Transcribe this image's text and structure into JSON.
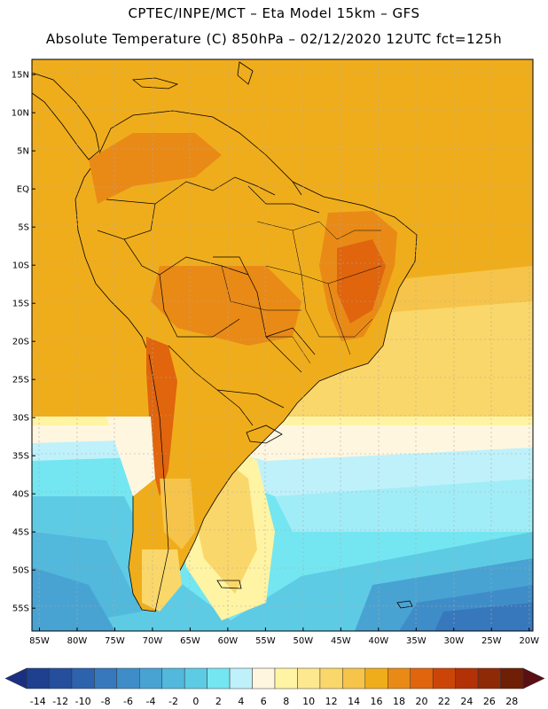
{
  "header": {
    "line1": "CPTEC/INPE/MCT –  Eta Model 15km – GFS",
    "line2": "Absolute Temperature (C) 850hPa – 02/12/2020 12UTC fct=125h"
  },
  "map": {
    "lat_labels": [
      "15N",
      "10N",
      "5N",
      "EQ",
      "5S",
      "10S",
      "15S",
      "20S",
      "25S",
      "30S",
      "35S",
      "40S",
      "45S",
      "50S",
      "55S"
    ],
    "lon_labels": [
      "85W",
      "80W",
      "75W",
      "70W",
      "65W",
      "60W",
      "55W",
      "50W",
      "45W",
      "40W",
      "35W",
      "30W",
      "25W",
      "20W"
    ],
    "lat_values": [
      15,
      10,
      5,
      0,
      -5,
      -10,
      -15,
      -20,
      -25,
      -30,
      -35,
      -40,
      -45,
      -50,
      -55
    ],
    "lon_values": [
      -85,
      -80,
      -75,
      -70,
      -65,
      -60,
      -55,
      -50,
      -45,
      -40,
      -35,
      -30,
      -25,
      -20
    ],
    "extent": {
      "west": -86,
      "east": -19.5,
      "south": -58,
      "north": 17
    }
  },
  "colorbar": {
    "labels": [
      "-14",
      "-12",
      "-10",
      "-8",
      "-6",
      "-4",
      "-2",
      "0",
      "2",
      "4",
      "6",
      "8",
      "10",
      "12",
      "14",
      "16",
      "18",
      "20",
      "22",
      "24",
      "26",
      "28"
    ],
    "colors": [
      "#1f3f8f",
      "#254f9c",
      "#2d62ac",
      "#3778bd",
      "#3f8dc8",
      "#48a3d2",
      "#52b8dc",
      "#5ecbe5",
      "#74e6f1",
      "#bff1fb",
      "#fff6e0",
      "#fff4a3",
      "#fde890",
      "#fad76a",
      "#f6c44a",
      "#f0ad1b",
      "#e98a16",
      "#e0650d",
      "#cc4508",
      "#b33106",
      "#8f2a06",
      "#6e1f05"
    ]
  }
}
